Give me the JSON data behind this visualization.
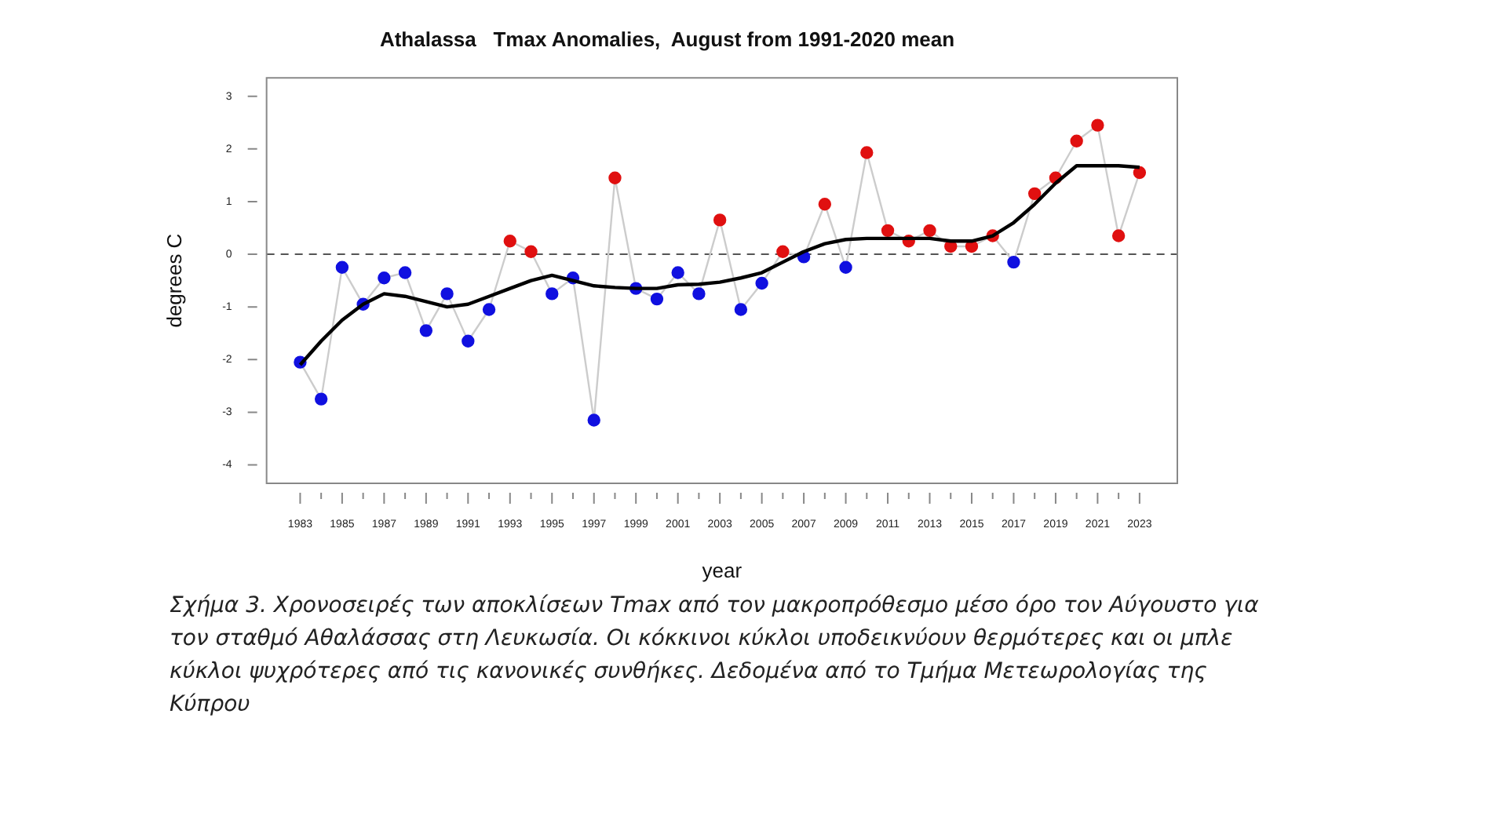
{
  "chart_data": {
    "type": "line",
    "title": "Athalassa   Tmax Anomalies,  August from 1991-2020 mean",
    "xlabel": "year",
    "ylabel": "degrees C",
    "x": [
      1983,
      1984,
      1985,
      1986,
      1987,
      1988,
      1989,
      1990,
      1991,
      1992,
      1993,
      1994,
      1995,
      1996,
      1997,
      1998,
      1999,
      2000,
      2001,
      2002,
      2003,
      2004,
      2005,
      2006,
      2007,
      2008,
      2009,
      2010,
      2011,
      2012,
      2013,
      2014,
      2015,
      2016,
      2017,
      2018,
      2019,
      2020,
      2021,
      2022,
      2023
    ],
    "series": [
      {
        "color": "#cccccc",
        "marker": "circle",
        "values": [
          -2.05,
          -2.75,
          -0.25,
          -0.95,
          -0.45,
          -0.35,
          -1.45,
          -0.75,
          -1.65,
          -1.05,
          0.25,
          0.05,
          -0.75,
          -0.45,
          -3.15,
          1.45,
          -0.65,
          -0.85,
          -0.35,
          -0.75,
          0.65,
          -1.05,
          -0.55,
          0.05,
          -0.05,
          0.95,
          -0.25,
          1.93,
          0.45,
          0.25,
          0.45,
          0.15,
          0.15,
          0.35,
          -0.15,
          1.15,
          1.45,
          2.15,
          2.45,
          0.35,
          1.55
        ],
        "colors": [
          "#1010e0",
          "#1010e0",
          "#1010e0",
          "#1010e0",
          "#1010e0",
          "#1010e0",
          "#1010e0",
          "#1010e0",
          "#1010e0",
          "#1010e0",
          "#e01010",
          "#e01010",
          "#1010e0",
          "#1010e0",
          "#1010e0",
          "#e01010",
          "#1010e0",
          "#1010e0",
          "#1010e0",
          "#1010e0",
          "#e01010",
          "#1010e0",
          "#1010e0",
          "#e01010",
          "#1010e0",
          "#e01010",
          "#1010e0",
          "#e01010",
          "#e01010",
          "#e01010",
          "#e01010",
          "#e01010",
          "#e01010",
          "#e01010",
          "#1010e0",
          "#e01010",
          "#e01010",
          "#e01010",
          "#e01010",
          "#e01010",
          "#e01010"
        ]
      },
      {
        "color": "#000000",
        "marker": "none",
        "values": [
          -2.1,
          -1.65,
          -1.25,
          -0.95,
          -0.75,
          -0.8,
          -0.9,
          -1.0,
          -0.95,
          -0.8,
          -0.65,
          -0.5,
          -0.4,
          -0.5,
          -0.6,
          -0.63,
          -0.65,
          -0.65,
          -0.58,
          -0.57,
          -0.53,
          -0.45,
          -0.35,
          -0.15,
          0.05,
          0.2,
          0.28,
          0.3,
          0.3,
          0.3,
          0.3,
          0.25,
          0.25,
          0.35,
          0.6,
          0.95,
          1.35,
          1.68,
          1.68,
          1.68,
          1.65
        ]
      }
    ],
    "xlim": [
      1981.4,
      2024.8
    ],
    "xticks": [
      1983,
      {
        "value": 1984,
        "label": null
      },
      1985,
      {
        "value": 1986,
        "label": null
      },
      1987,
      {
        "value": 1988,
        "label": null
      },
      1989,
      {
        "value": 1990,
        "label": null
      },
      1991,
      {
        "value": 1992,
        "label": null
      },
      1993,
      {
        "value": 1994,
        "label": null
      },
      1995,
      {
        "value": 1996,
        "label": null
      },
      1997,
      {
        "value": 1998,
        "label": null
      },
      1999,
      {
        "value": 2000,
        "label": null
      },
      2001,
      {
        "value": 2002,
        "label": null
      },
      2003,
      {
        "value": 2004,
        "label": null
      },
      2005,
      {
        "value": 2006,
        "label": null
      },
      2007,
      {
        "value": 2008,
        "label": null
      },
      2009,
      {
        "value": 2010,
        "label": null
      },
      2011,
      {
        "value": 2012,
        "label": null
      },
      2013,
      {
        "value": 2014,
        "label": null
      },
      2015,
      {
        "value": 2016,
        "label": null
      },
      2017,
      {
        "value": 2018,
        "label": null
      },
      2019,
      {
        "value": 2020,
        "label": null
      },
      2021,
      {
        "value": 2022,
        "label": null
      },
      2023
    ],
    "ylim": [
      -4.35,
      3.35
    ],
    "yticks": [
      -4,
      -3,
      -2,
      -1,
      0,
      1,
      2,
      3
    ],
    "ref_lines": [
      {
        "axis": "y",
        "value": 0,
        "color": "#555555",
        "line_style": "dashed"
      }
    ],
    "grid": false,
    "legend": false,
    "annotations": [
      "Σχήμα 3. Χρονοσειρές των αποκλίσεων Tmax από τον μακροπρόθεσμο μέσο όρο τον Αύγουστο για τον σταθμό Αθαλάσσας  στη Λευκωσία. Οι κόκκινοι κύκλοι υποδεικνύουν θερμότερες και οι μπλε κύκλοι ψυχρότερες από τις κανονικές συνθήκες. Δεδομένα από το Τμήμα Μετεωρολογίας της Κύπρου"
    ]
  }
}
